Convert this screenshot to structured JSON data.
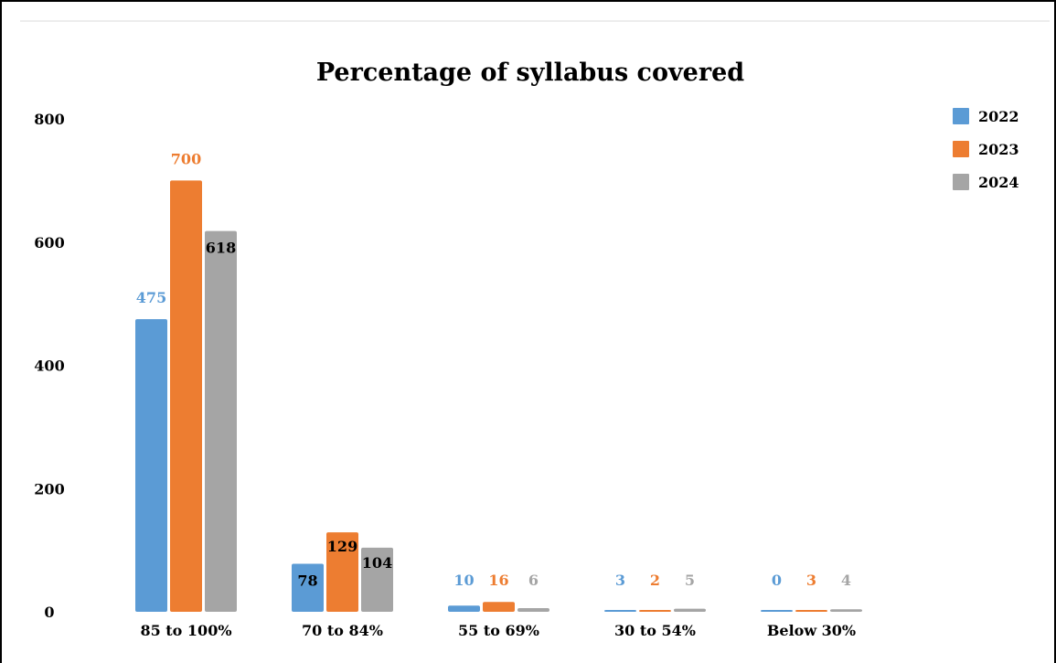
{
  "chart_data": {
    "type": "bar",
    "title": "Percentage of syllabus covered",
    "xlabel": "",
    "ylabel": "",
    "ylim": [
      0,
      800
    ],
    "yticks": [
      0,
      200,
      400,
      600,
      800
    ],
    "grid": false,
    "legend_position": "top-right",
    "categories": [
      "85 to 100%",
      "70 to 84%",
      "55 to 69%",
      "30 to 54%",
      "Below 30%"
    ],
    "series": [
      {
        "name": "2022",
        "color": "#5b9bd5",
        "values": [
          475,
          78,
          10,
          3,
          0
        ]
      },
      {
        "name": "2023",
        "color": "#ed7d31",
        "values": [
          700,
          129,
          16,
          2,
          3
        ]
      },
      {
        "name": "2024",
        "color": "#a5a5a5",
        "values": [
          618,
          104,
          6,
          5,
          4
        ]
      }
    ]
  }
}
